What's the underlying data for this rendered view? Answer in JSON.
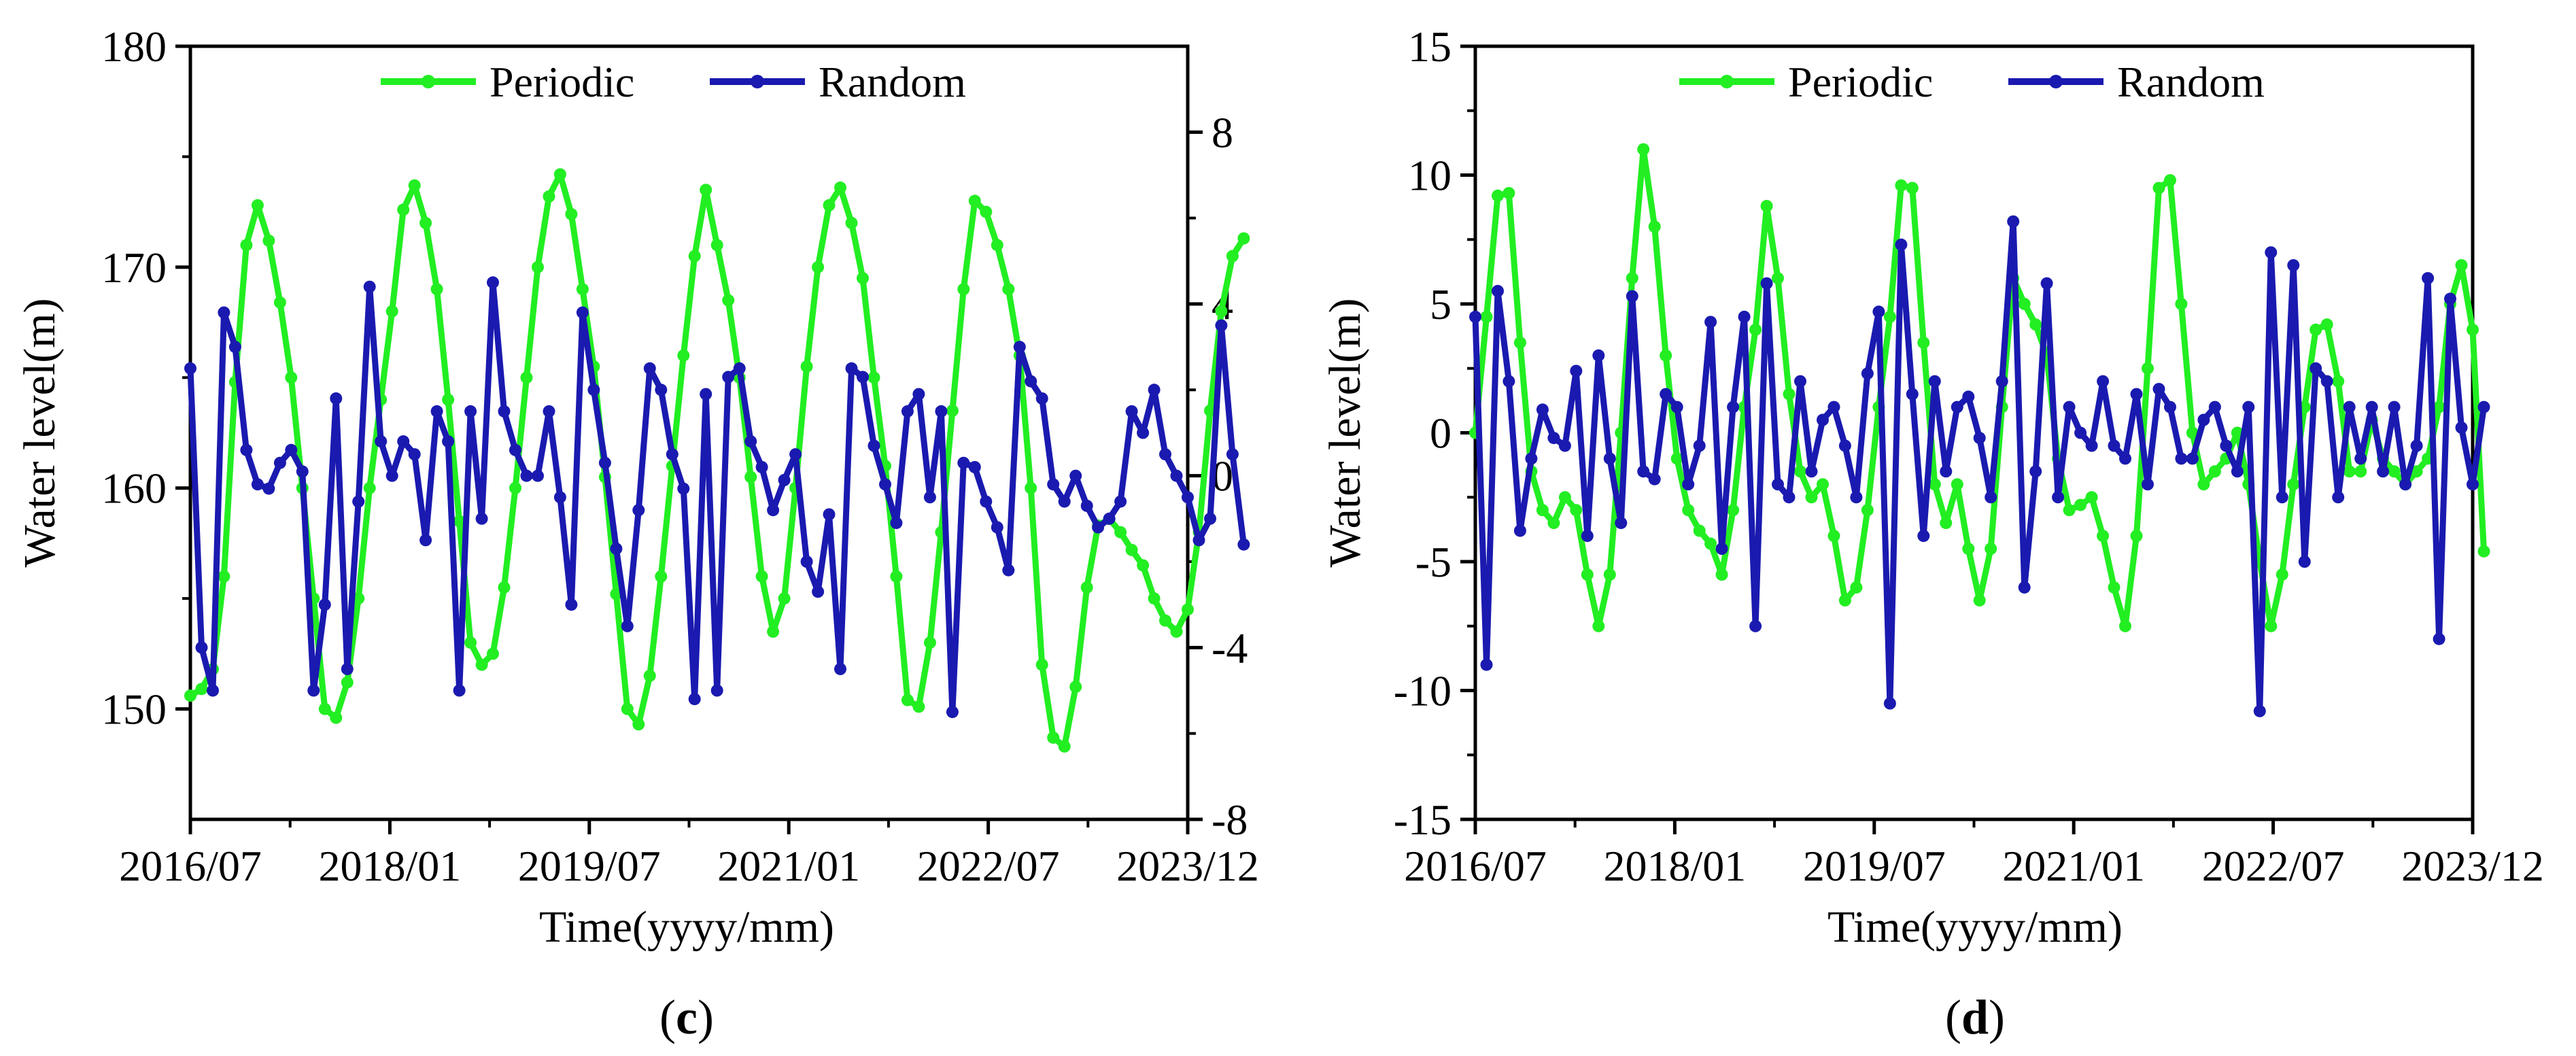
{
  "chart_data": [
    {
      "type": "line",
      "panel_label": "c",
      "xlabel": "Time(yyyy/mm)",
      "ylabel": "Water level(m)",
      "xticks": [
        "2016/07",
        "2018/01",
        "2019/07",
        "2021/01",
        "2022/07",
        "2023/12"
      ],
      "xlim": [
        0,
        89
      ],
      "left_axis": {
        "ylim": [
          145,
          180
        ],
        "ticks": [
          "150",
          "160",
          "170",
          "180"
        ]
      },
      "right_axis": {
        "ylim": [
          -8,
          10
        ],
        "ticks": [
          "-8",
          "-4",
          "0",
          "4",
          "8"
        ]
      },
      "legend_position": "top-center",
      "series": [
        {
          "name": "Periodic",
          "color": "#22ee22",
          "axis": "left",
          "values": [
            150.6,
            150.9,
            151.8,
            156.0,
            164.8,
            171.0,
            172.8,
            171.2,
            168.4,
            165.0,
            160.0,
            155.0,
            150.0,
            149.6,
            151.2,
            155.0,
            160.0,
            164.0,
            168.0,
            172.6,
            173.7,
            172.0,
            169.0,
            164.0,
            158.5,
            153.0,
            152.0,
            152.5,
            155.5,
            160.0,
            165.0,
            170.0,
            173.2,
            174.2,
            172.4,
            169.0,
            165.5,
            160.5,
            155.2,
            150.0,
            149.3,
            151.5,
            156.0,
            161.0,
            166.0,
            170.5,
            173.5,
            171.0,
            168.5,
            165.0,
            160.5,
            156.0,
            153.5,
            155.0,
            160.0,
            165.5,
            170.0,
            172.8,
            173.6,
            172.0,
            169.5,
            165.0,
            161.0,
            156.0,
            150.4,
            150.1,
            153.0,
            158.0,
            163.5,
            169.0,
            173.0,
            172.5,
            171.0,
            169.0,
            166.0,
            160.0,
            152.0,
            148.7,
            148.3,
            151.0,
            155.5,
            158.3,
            158.6,
            158.0,
            157.2,
            156.5,
            155.0,
            154.0,
            153.5,
            154.5,
            158.0,
            163.5,
            168.0,
            170.5,
            171.3
          ]
        },
        {
          "name": "Random",
          "color": "#1a1ab0",
          "axis": "right",
          "values": [
            2.5,
            -4.0,
            -5.0,
            3.8,
            3.0,
            0.6,
            -0.2,
            -0.3,
            0.3,
            0.6,
            0.1,
            -5.0,
            -3.0,
            1.8,
            -4.5,
            -0.6,
            4.4,
            0.8,
            0.0,
            0.8,
            0.5,
            -1.5,
            1.5,
            0.8,
            -5.0,
            1.5,
            -1.0,
            4.5,
            1.5,
            0.6,
            0.0,
            0.0,
            1.5,
            -0.5,
            -3.0,
            3.8,
            2.0,
            0.3,
            -1.7,
            -3.5,
            -0.8,
            2.5,
            2.0,
            0.5,
            -0.3,
            -5.2,
            1.9,
            -5.0,
            2.3,
            2.5,
            0.8,
            0.2,
            -0.8,
            -0.1,
            0.5,
            -2.0,
            -2.7,
            -0.9,
            -4.5,
            2.5,
            2.3,
            0.7,
            -0.2,
            -1.1,
            1.5,
            1.9,
            -0.5,
            1.5,
            -5.5,
            0.3,
            0.2,
            -0.6,
            -1.2,
            -2.2,
            3.0,
            2.2,
            1.8,
            -0.2,
            -0.6,
            0.0,
            -0.7,
            -1.2,
            -1.0,
            -0.6,
            1.5,
            1.0,
            2.0,
            0.5,
            0.0,
            -0.5,
            -1.5,
            -1.0,
            3.5,
            0.5,
            -1.6
          ]
        }
      ]
    },
    {
      "type": "line",
      "panel_label": "d",
      "xlabel": "Time(yyyy/mm)",
      "ylabel": "Water level(m)",
      "xticks": [
        "2016/07",
        "2018/01",
        "2019/07",
        "2021/01",
        "2022/07",
        "2023/12"
      ],
      "xlim": [
        0,
        89
      ],
      "left_axis": {
        "ylim": [
          -15,
          15
        ],
        "ticks": [
          "-15",
          "-10",
          "-5",
          "0",
          "5",
          "10",
          "15"
        ]
      },
      "legend_position": "top-center",
      "series": [
        {
          "name": "Periodic",
          "color": "#22ee22",
          "axis": "left",
          "values": [
            0.0,
            4.5,
            9.2,
            9.3,
            3.5,
            -1.5,
            -3.0,
            -3.5,
            -2.5,
            -3.0,
            -5.5,
            -7.5,
            -5.5,
            0.0,
            6.0,
            11.0,
            8.0,
            3.0,
            -1.0,
            -3.0,
            -3.8,
            -4.3,
            -5.5,
            -3.0,
            1.0,
            4.0,
            8.8,
            6.0,
            1.5,
            -1.5,
            -2.5,
            -2.0,
            -4.0,
            -6.5,
            -6.0,
            -3.0,
            1.0,
            4.5,
            9.6,
            9.5,
            3.5,
            -2.0,
            -3.5,
            -2.0,
            -4.5,
            -6.5,
            -4.5,
            1.0,
            6.0,
            5.0,
            4.2,
            3.0,
            -1.0,
            -3.0,
            -2.8,
            -2.5,
            -4.0,
            -6.0,
            -7.5,
            -4.0,
            2.5,
            9.5,
            9.8,
            5.0,
            0.0,
            -2.0,
            -1.5,
            -1.0,
            0.0,
            -2.0,
            -5.0,
            -7.5,
            -5.5,
            -2.0,
            1.0,
            4.0,
            4.2,
            2.0,
            -1.5,
            -1.5,
            0.5,
            -1.0,
            -1.5,
            -2.0,
            -1.5,
            -1.0,
            1.0,
            5.0,
            6.5,
            4.0,
            -4.6
          ]
        },
        {
          "name": "Random",
          "color": "#1a1ab0",
          "axis": "left",
          "values": [
            4.5,
            -9.0,
            5.5,
            2.0,
            -3.8,
            -1.0,
            0.9,
            -0.2,
            -0.5,
            2.4,
            -4.0,
            3.0,
            -1.0,
            -3.5,
            5.3,
            -1.5,
            -1.8,
            1.5,
            1.0,
            -2.0,
            -0.5,
            4.3,
            -4.5,
            1.0,
            4.5,
            -7.5,
            5.8,
            -2.0,
            -2.5,
            2.0,
            -1.5,
            0.5,
            1.0,
            -0.5,
            -2.5,
            2.3,
            4.7,
            -10.5,
            7.3,
            1.5,
            -4.0,
            2.0,
            -1.5,
            1.0,
            1.4,
            -0.2,
            -2.5,
            2.0,
            8.2,
            -6.0,
            -1.5,
            5.8,
            -2.5,
            1.0,
            0.0,
            -0.5,
            2.0,
            -0.5,
            -1.0,
            1.5,
            -2.0,
            1.7,
            1.0,
            -1.0,
            -1.0,
            0.5,
            1.0,
            -0.5,
            -1.5,
            1.0,
            -10.8,
            7.0,
            -2.5,
            6.5,
            -5.0,
            2.5,
            2.0,
            -2.5,
            1.0,
            -1.0,
            1.0,
            -1.5,
            1.0,
            -2.0,
            -0.5,
            6.0,
            -8.0,
            5.2,
            0.2,
            -2.0,
            1.0
          ]
        }
      ]
    }
  ]
}
